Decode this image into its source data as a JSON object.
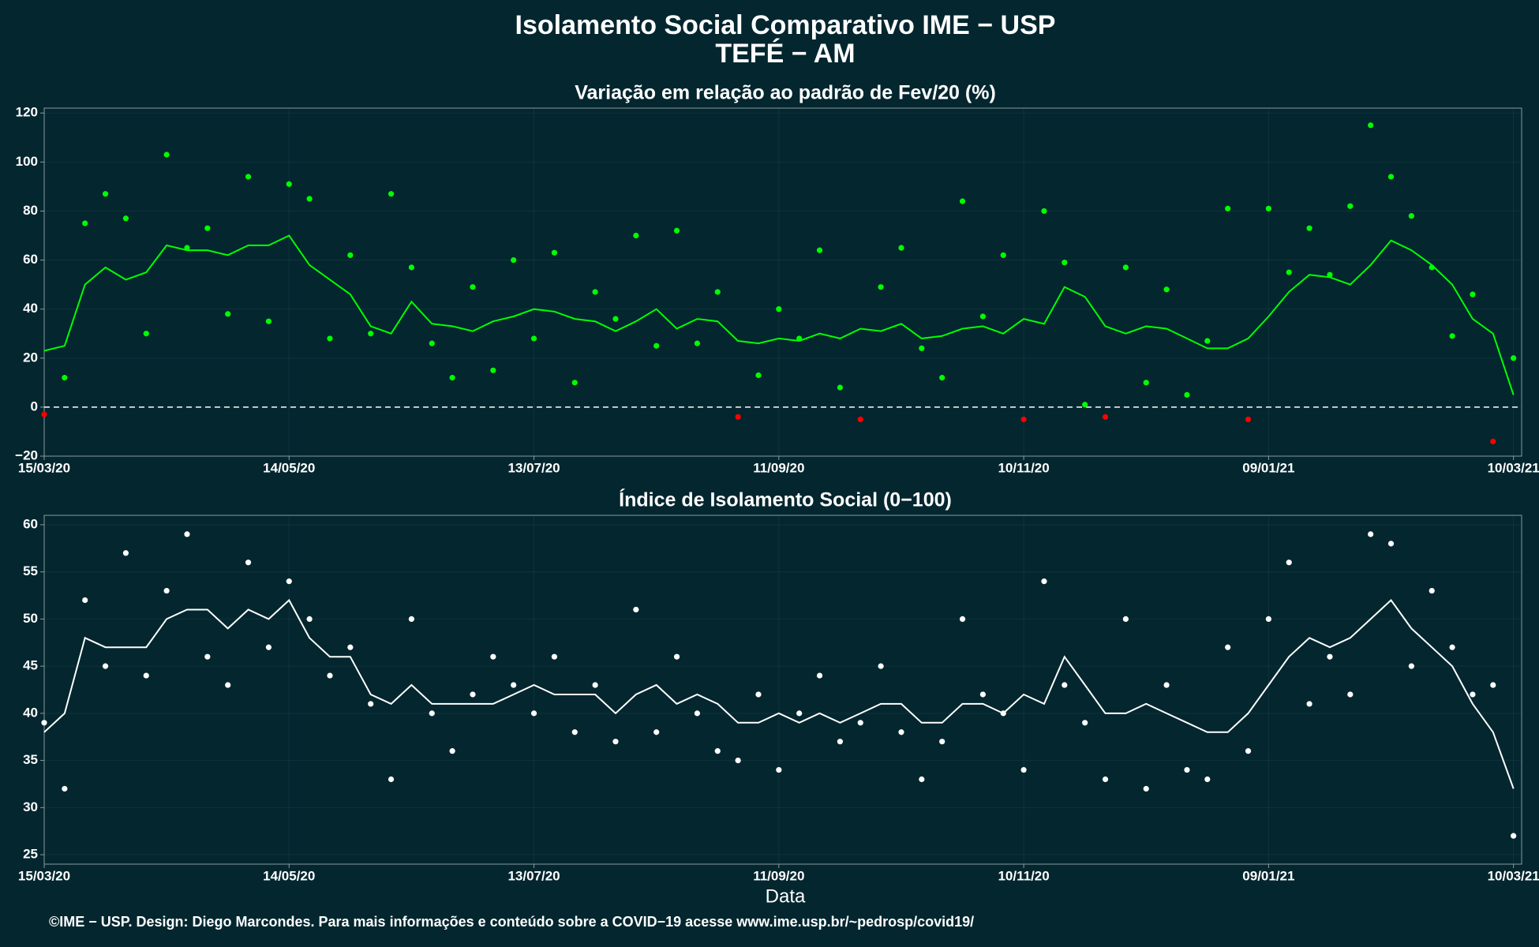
{
  "title": "Isolamento Social Comparativo IME − USP",
  "subtitle": "TEFÉ − AM",
  "footer": "©IME − USP. Design: Diego Marcondes. Para mais informações e conteúdo sobre a COVID−19 acesse www.ime.usp.br/~pedrosp/covid19/",
  "chart_data": [
    {
      "type": "scatter",
      "title": "Variação em relação ao padrão de Fev/20 (%)",
      "x": [
        "2020-03-15",
        "2020-03-20",
        "2020-03-25",
        "2020-03-30",
        "2020-04-04",
        "2020-04-09",
        "2020-04-14",
        "2020-04-19",
        "2020-04-24",
        "2020-04-29",
        "2020-05-04",
        "2020-05-09",
        "2020-05-14",
        "2020-05-19",
        "2020-05-24",
        "2020-05-29",
        "2020-06-03",
        "2020-06-08",
        "2020-06-13",
        "2020-06-18",
        "2020-06-23",
        "2020-06-28",
        "2020-07-03",
        "2020-07-08",
        "2020-07-13",
        "2020-07-18",
        "2020-07-23",
        "2020-07-28",
        "2020-08-02",
        "2020-08-07",
        "2020-08-12",
        "2020-08-17",
        "2020-08-22",
        "2020-08-27",
        "2020-09-01",
        "2020-09-06",
        "2020-09-11",
        "2020-09-16",
        "2020-09-21",
        "2020-09-26",
        "2020-10-01",
        "2020-10-06",
        "2020-10-11",
        "2020-10-16",
        "2020-10-21",
        "2020-10-26",
        "2020-10-31",
        "2020-11-05",
        "2020-11-10",
        "2020-11-15",
        "2020-11-20",
        "2020-11-25",
        "2020-11-30",
        "2020-12-05",
        "2020-12-10",
        "2020-12-15",
        "2020-12-20",
        "2020-12-25",
        "2020-12-30",
        "2021-01-04",
        "2021-01-09",
        "2021-01-14",
        "2021-01-19",
        "2021-01-24",
        "2021-01-29",
        "2021-02-03",
        "2021-02-08",
        "2021-02-13",
        "2021-02-18",
        "2021-02-23",
        "2021-02-28",
        "2021-03-05",
        "2021-03-10"
      ],
      "series": [
        {
          "mode": "markers",
          "color": "#00ff00",
          "negative_color": "#ff0000",
          "values": [
            -3,
            12,
            75,
            87,
            77,
            30,
            103,
            65,
            73,
            38,
            94,
            35,
            91,
            85,
            28,
            62,
            30,
            87,
            57,
            26,
            12,
            49,
            15,
            60,
            28,
            63,
            10,
            47,
            36,
            70,
            25,
            72,
            26,
            47,
            -4,
            13,
            40,
            28,
            64,
            8,
            -5,
            49,
            65,
            24,
            12,
            84,
            37,
            62,
            -5,
            80,
            59,
            1,
            -4,
            57,
            10,
            48,
            5,
            27,
            81,
            -5,
            81,
            55,
            73,
            54,
            82,
            115,
            94,
            78,
            57,
            29,
            46,
            -14,
            20
          ]
        },
        {
          "mode": "line",
          "color": "#00ff00",
          "values": [
            23,
            25,
            50,
            57,
            52,
            55,
            66,
            64,
            64,
            62,
            66,
            66,
            70,
            58,
            52,
            46,
            33,
            30,
            43,
            34,
            33,
            31,
            35,
            37,
            40,
            39,
            36,
            35,
            31,
            35,
            40,
            32,
            36,
            35,
            27,
            26,
            28,
            27,
            30,
            28,
            32,
            31,
            34,
            28,
            29,
            32,
            33,
            30,
            36,
            34,
            49,
            45,
            33,
            30,
            33,
            32,
            28,
            24,
            24,
            28,
            37,
            47,
            54,
            53,
            50,
            58,
            68,
            64,
            58,
            50,
            36,
            30,
            5
          ]
        }
      ],
      "hline": 0,
      "xlim": [
        "2020-03-15",
        "2021-03-12"
      ],
      "xticks": [
        {
          "value": "2020-03-15",
          "label": "15/03/20"
        },
        {
          "value": "2020-05-14",
          "label": "14/05/20"
        },
        {
          "value": "2020-07-13",
          "label": "13/07/20"
        },
        {
          "value": "2020-09-11",
          "label": "11/09/20"
        },
        {
          "value": "2020-11-10",
          "label": "10/11/20"
        },
        {
          "value": "2021-01-09",
          "label": "09/01/21"
        },
        {
          "value": "2021-03-10",
          "label": "10/03/21"
        }
      ],
      "ylim": [
        -20,
        122
      ],
      "yticks": [
        {
          "value": -20,
          "label": "−20"
        },
        0,
        20,
        40,
        60,
        80,
        100,
        120
      ],
      "grid": true
    },
    {
      "type": "scatter",
      "title": "Índice de Isolamento Social (0−100)",
      "xlabel": "Data",
      "x": [
        "2020-03-15",
        "2020-03-20",
        "2020-03-25",
        "2020-03-30",
        "2020-04-04",
        "2020-04-09",
        "2020-04-14",
        "2020-04-19",
        "2020-04-24",
        "2020-04-29",
        "2020-05-04",
        "2020-05-09",
        "2020-05-14",
        "2020-05-19",
        "2020-05-24",
        "2020-05-29",
        "2020-06-03",
        "2020-06-08",
        "2020-06-13",
        "2020-06-18",
        "2020-06-23",
        "2020-06-28",
        "2020-07-03",
        "2020-07-08",
        "2020-07-13",
        "2020-07-18",
        "2020-07-23",
        "2020-07-28",
        "2020-08-02",
        "2020-08-07",
        "2020-08-12",
        "2020-08-17",
        "2020-08-22",
        "2020-08-27",
        "2020-09-01",
        "2020-09-06",
        "2020-09-11",
        "2020-09-16",
        "2020-09-21",
        "2020-09-26",
        "2020-10-01",
        "2020-10-06",
        "2020-10-11",
        "2020-10-16",
        "2020-10-21",
        "2020-10-26",
        "2020-10-31",
        "2020-11-05",
        "2020-11-10",
        "2020-11-15",
        "2020-11-20",
        "2020-11-25",
        "2020-11-30",
        "2020-12-05",
        "2020-12-10",
        "2020-12-15",
        "2020-12-20",
        "2020-12-25",
        "2020-12-30",
        "2021-01-04",
        "2021-01-09",
        "2021-01-14",
        "2021-01-19",
        "2021-01-24",
        "2021-01-29",
        "2021-02-03",
        "2021-02-08",
        "2021-02-13",
        "2021-02-18",
        "2021-02-23",
        "2021-02-28",
        "2021-03-05",
        "2021-03-10"
      ],
      "series": [
        {
          "mode": "markers",
          "color": "#ffffff",
          "values": [
            39,
            32,
            52,
            45,
            57,
            44,
            53,
            59,
            46,
            43,
            56,
            47,
            54,
            50,
            44,
            47,
            41,
            33,
            50,
            40,
            36,
            42,
            46,
            43,
            40,
            46,
            38,
            43,
            37,
            51,
            38,
            46,
            40,
            36,
            35,
            42,
            34,
            40,
            44,
            37,
            39,
            45,
            38,
            33,
            37,
            50,
            42,
            40,
            34,
            54,
            43,
            39,
            33,
            50,
            32,
            43,
            34,
            33,
            47,
            36,
            50,
            56,
            41,
            46,
            42,
            59,
            58,
            45,
            53,
            47,
            42,
            43,
            27
          ]
        },
        {
          "mode": "line",
          "color": "#ffffff",
          "values": [
            38,
            40,
            48,
            47,
            47,
            47,
            50,
            51,
            51,
            49,
            51,
            50,
            52,
            48,
            46,
            46,
            42,
            41,
            43,
            41,
            41,
            41,
            41,
            42,
            43,
            42,
            42,
            42,
            40,
            42,
            43,
            41,
            42,
            41,
            39,
            39,
            40,
            39,
            40,
            39,
            40,
            41,
            41,
            39,
            39,
            41,
            41,
            40,
            42,
            41,
            46,
            43,
            40,
            40,
            41,
            40,
            39,
            38,
            38,
            40,
            43,
            46,
            48,
            47,
            48,
            50,
            52,
            49,
            47,
            45,
            41,
            38,
            32
          ]
        }
      ],
      "xlim": [
        "2020-03-15",
        "2021-03-12"
      ],
      "xticks": [
        {
          "value": "2020-03-15",
          "label": "15/03/20"
        },
        {
          "value": "2020-05-14",
          "label": "14/05/20"
        },
        {
          "value": "2020-07-13",
          "label": "13/07/20"
        },
        {
          "value": "2020-09-11",
          "label": "11/09/20"
        },
        {
          "value": "2020-11-10",
          "label": "10/11/20"
        },
        {
          "value": "2021-01-09",
          "label": "09/01/21"
        },
        {
          "value": "2021-03-10",
          "label": "10/03/21"
        }
      ],
      "ylim": [
        24,
        61
      ],
      "yticks": [
        25,
        30,
        35,
        40,
        45,
        50,
        55,
        60
      ],
      "grid": true
    }
  ]
}
